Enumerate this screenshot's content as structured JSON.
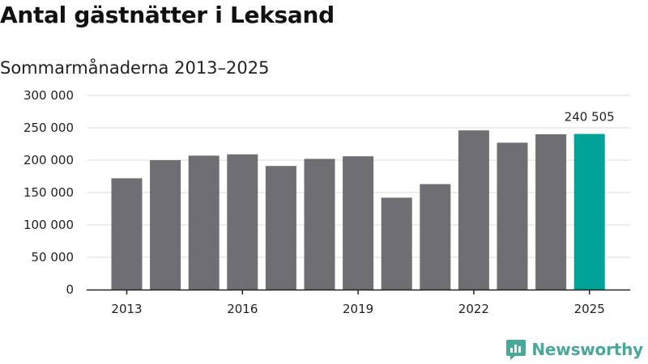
{
  "colors": {
    "bar": "#6f6e73",
    "highlight": "#00a398",
    "grid": "#dddddd",
    "axis": "#222222",
    "brand": "#4aa89a"
  },
  "brand": {
    "name": "Newsworthy",
    "icon": "newsworthy-logo-icon"
  },
  "chart_data": {
    "type": "bar",
    "title": "Antal gästnätter i Leksand",
    "subtitle": "Sommarmånaderna 2013–2025",
    "categories": [
      "2013",
      "2014",
      "2015",
      "2016",
      "2017",
      "2018",
      "2019",
      "2020",
      "2021",
      "2022",
      "2023",
      "2024",
      "2025"
    ],
    "values": [
      172000,
      200000,
      207000,
      209000,
      191000,
      202000,
      206000,
      142000,
      163000,
      246000,
      227000,
      240000,
      240505
    ],
    "highlight_index": 12,
    "data_labels": [
      {
        "index": 12,
        "text": "240 505"
      }
    ],
    "x_tick_labels": [
      {
        "index": 0,
        "text": "2013"
      },
      {
        "index": 3,
        "text": "2016"
      },
      {
        "index": 6,
        "text": "2019"
      },
      {
        "index": 9,
        "text": "2022"
      },
      {
        "index": 12,
        "text": "2025"
      }
    ],
    "y_ticks": [
      {
        "value": 0,
        "label": "0"
      },
      {
        "value": 50000,
        "label": "50 000"
      },
      {
        "value": 100000,
        "label": "100 000"
      },
      {
        "value": 150000,
        "label": "150 000"
      },
      {
        "value": 200000,
        "label": "200 000"
      },
      {
        "value": 250000,
        "label": "250 000"
      },
      {
        "value": 300000,
        "label": "300 000"
      }
    ],
    "ylim": [
      0,
      300000
    ],
    "grid": true
  }
}
